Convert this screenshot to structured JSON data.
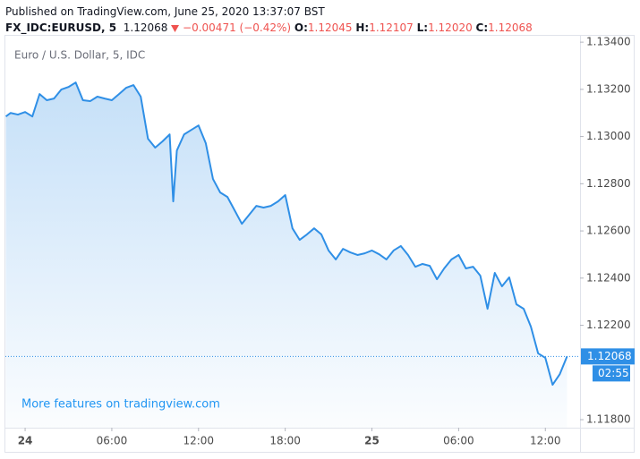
{
  "header": {
    "published": "Published on TradingView.com, June 25, 2020 13:37:07 BST",
    "symbol": "FX_IDC:EURUSD, 5",
    "price": "1.12068",
    "change": "−0.00471 (−0.42%)",
    "ohlc": [
      {
        "label": "O:",
        "value": "1.12045"
      },
      {
        "label": "H:",
        "value": "1.12107"
      },
      {
        "label": "L:",
        "value": "1.12020"
      },
      {
        "label": "C:",
        "value": "1.12068"
      }
    ]
  },
  "chart_data": {
    "type": "area",
    "title": "Euro / U.S. Dollar, 5, IDC",
    "color": "#2f8fe6",
    "annotations": {
      "link": "More features on tradingview.com",
      "countdown": "02:55"
    },
    "x": [
      "2020-06-23T22:40",
      "2020-06-23T23:00",
      "2020-06-23T23:30",
      "2020-06-24T00:00",
      "2020-06-24T00:30",
      "2020-06-24T01:00",
      "2020-06-24T01:30",
      "2020-06-24T02:00",
      "2020-06-24T02:30",
      "2020-06-24T03:00",
      "2020-06-24T03:30",
      "2020-06-24T04:00",
      "2020-06-24T04:30",
      "2020-06-24T05:00",
      "2020-06-24T05:30",
      "2020-06-24T06:00",
      "2020-06-24T06:30",
      "2020-06-24T07:00",
      "2020-06-24T07:30",
      "2020-06-24T08:00",
      "2020-06-24T08:30",
      "2020-06-24T09:00",
      "2020-06-24T09:30",
      "2020-06-24T10:00",
      "2020-06-24T10:15",
      "2020-06-24T10:30",
      "2020-06-24T11:00",
      "2020-06-24T11:30",
      "2020-06-24T12:00",
      "2020-06-24T12:30",
      "2020-06-24T13:00",
      "2020-06-24T13:30",
      "2020-06-24T14:00",
      "2020-06-24T14:30",
      "2020-06-24T15:00",
      "2020-06-24T15:30",
      "2020-06-24T16:00",
      "2020-06-24T16:30",
      "2020-06-24T17:00",
      "2020-06-24T17:30",
      "2020-06-24T18:00",
      "2020-06-24T18:30",
      "2020-06-24T19:00",
      "2020-06-24T19:30",
      "2020-06-24T20:00",
      "2020-06-24T20:30",
      "2020-06-24T21:00",
      "2020-06-24T21:30",
      "2020-06-24T22:00",
      "2020-06-24T22:30",
      "2020-06-24T23:00",
      "2020-06-24T23:30",
      "2020-06-25T00:00",
      "2020-06-25T00:30",
      "2020-06-25T01:00",
      "2020-06-25T01:30",
      "2020-06-25T02:00",
      "2020-06-25T02:30",
      "2020-06-25T03:00",
      "2020-06-25T03:30",
      "2020-06-25T04:00",
      "2020-06-25T04:30",
      "2020-06-25T05:00",
      "2020-06-25T05:30",
      "2020-06-25T06:00",
      "2020-06-25T06:30",
      "2020-06-25T07:00",
      "2020-06-25T07:30",
      "2020-06-25T08:00",
      "2020-06-25T08:30",
      "2020-06-25T09:00",
      "2020-06-25T09:30",
      "2020-06-25T10:00",
      "2020-06-25T10:30",
      "2020-06-25T11:00",
      "2020-06-25T11:30",
      "2020-06-25T12:00",
      "2020-06-25T12:30",
      "2020-06-25T13:00",
      "2020-06-25T13:30"
    ],
    "values": [
      1.13085,
      1.131,
      1.13093,
      1.13104,
      1.13085,
      1.1318,
      1.13154,
      1.13161,
      1.13199,
      1.1321,
      1.13229,
      1.13154,
      1.1315,
      1.13169,
      1.13161,
      1.13154,
      1.1318,
      1.13207,
      1.13218,
      1.13169,
      1.12991,
      1.12953,
      1.12979,
      1.13009,
      1.12725,
      1.12941,
      1.13009,
      1.13028,
      1.13047,
      1.12972,
      1.1282,
      1.12763,
      1.12744,
      1.12687,
      1.1263,
      1.12668,
      1.12706,
      1.12699,
      1.12706,
      1.12725,
      1.12752,
      1.12611,
      1.12562,
      1.12585,
      1.12611,
      1.12585,
      1.12517,
      1.12479,
      1.12524,
      1.12509,
      1.12498,
      1.12505,
      1.12517,
      1.12501,
      1.12479,
      1.12517,
      1.12536,
      1.12498,
      1.12448,
      1.1246,
      1.12452,
      1.12395,
      1.12441,
      1.12479,
      1.12498,
      1.12441,
      1.12448,
      1.1241,
      1.1227,
      1.12422,
      1.12365,
      1.12403,
      1.12289,
      1.1227,
      1.12194,
      1.12081,
      1.12062,
      1.11948,
      1.11993,
      1.12068
    ],
    "xlim": [
      "2020-06-23T22:38",
      "2020-06-25T14:24"
    ],
    "xticks": [
      {
        "value": "2020-06-24T00:00",
        "label": "24"
      },
      {
        "value": "2020-06-24T06:00",
        "label": "06:00"
      },
      {
        "value": "2020-06-24T12:00",
        "label": "12:00"
      },
      {
        "value": "2020-06-24T18:00",
        "label": "18:00"
      },
      {
        "value": "2020-06-25T00:00",
        "label": "25"
      },
      {
        "value": "2020-06-25T06:00",
        "label": "06:00"
      },
      {
        "value": "2020-06-25T12:00",
        "label": "12:00"
      }
    ],
    "ylim": [
      1.11766,
      1.13427
    ],
    "yticks": [
      {
        "value": 1.118,
        "label": "1.11800"
      },
      {
        "value": 1.122,
        "label": "1.12200"
      },
      {
        "value": 1.124,
        "label": "1.12400"
      },
      {
        "value": 1.126,
        "label": "1.12600"
      },
      {
        "value": 1.128,
        "label": "1.12800"
      },
      {
        "value": 1.13,
        "label": "1.13000"
      },
      {
        "value": 1.132,
        "label": "1.13200"
      },
      {
        "value": 1.134,
        "label": "1.13400"
      }
    ]
  }
}
